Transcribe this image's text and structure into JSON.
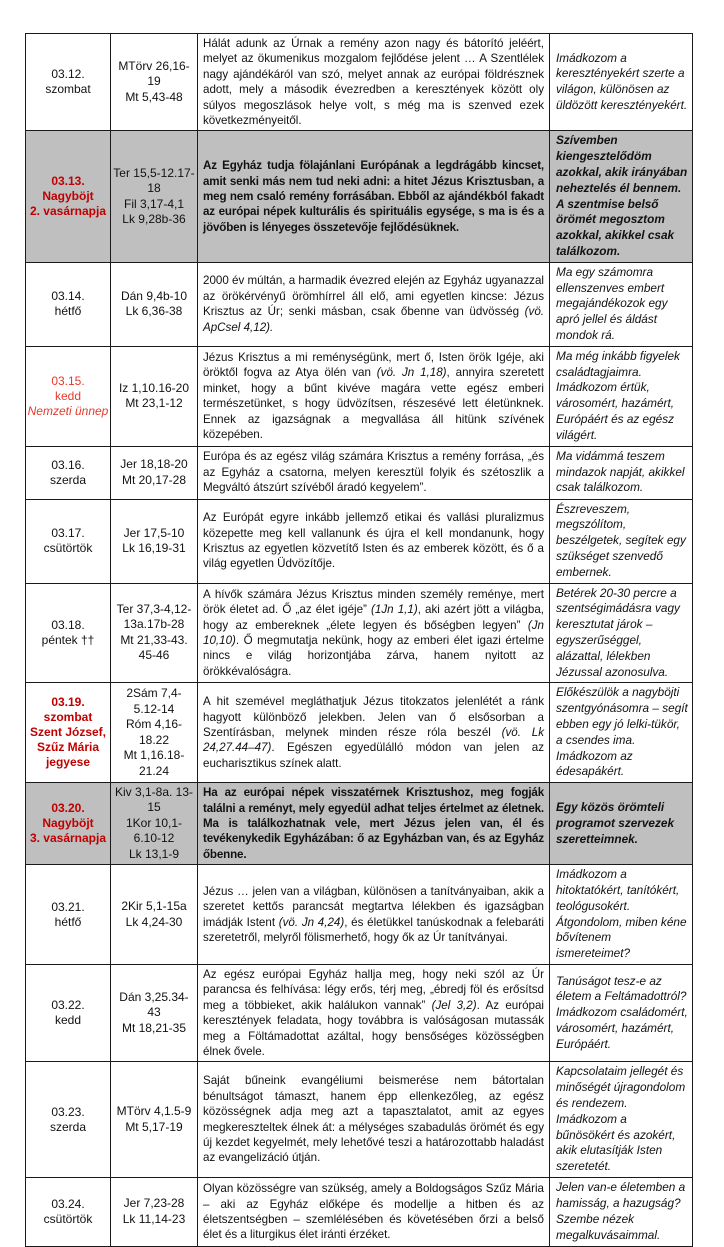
{
  "colors": {
    "date_red_bold": "#c00000",
    "date_red": "#e23b2e",
    "highlight_background": "#bfbfbf",
    "border": "#1a1a1a"
  },
  "table": {
    "rows": [
      {
        "highlighted": false,
        "date_lines": [
          {
            "t": "03.12.",
            "s": "plain"
          },
          {
            "t": "szombat",
            "s": "plain"
          }
        ],
        "ref_lines": [
          "MTörv 26,16-19",
          "Mt 5,43-48"
        ],
        "text_segments": [
          {
            "t": "Hálát adunk az Úrnak a remény azon nagy és bátorító jeléért, melyet az ökumenikus mozgalom fejlődése jelent … A Szentlélek nagy ajándékáról van szó, melyet annak az európai földrésznek adott, mely a második évezredben a keresztények között oly súlyos megoszlások helye volt, s még ma is szenved ezek következményeitől.",
            "i": false
          }
        ],
        "prayer": "Imádkozom a keresztényekért szerte a világon, különösen az üldözött keresztényekért."
      },
      {
        "highlighted": true,
        "date_lines": [
          {
            "t": "03.13.",
            "s": "red-bold"
          },
          {
            "t": "Nagyböjt",
            "s": "red-bold"
          },
          {
            "t": "2. vasárnapja",
            "s": "red-bold"
          }
        ],
        "ref_lines": [
          "Ter 15,5-12.17-18",
          "Fil 3,17-4,1",
          "Lk 9,28b-36"
        ],
        "text_segments": [
          {
            "t": "Az Egyház tudja fölajánlani Európának a legdrágább kincset, amit senki más nem tud neki adni: a hitet Jézus Krisztusban, a meg nem csaló remény forrásában. Ebből az ajándékból fakadt az európai népek kulturális és spirituális egysége, s ma is és a jövőben is lényeges összetevője fejlődésüknek.",
            "i": false
          }
        ],
        "prayer": "Szívemben kiengesztelődöm azokkal, akik irányában neheztelés él bennem. A szentmise belső örömét megosztom azokkal, akikkel csak találkozom."
      },
      {
        "highlighted": false,
        "date_lines": [
          {
            "t": "03.14.",
            "s": "plain"
          },
          {
            "t": "hétfő",
            "s": "plain"
          }
        ],
        "ref_lines": [
          "Dán 9,4b-10",
          "Lk 6,36-38"
        ],
        "text_segments": [
          {
            "t": "2000 év múltán, a harmadik évezred elején az Egyház ugyanazzal az örökérvényű örömhírrel áll elő, ami egyetlen kincse: Jézus Krisztus az Úr; senki másban, csak őbenne van üdvösség ",
            "i": false
          },
          {
            "t": "(vö. ApCsel 4,12).",
            "i": true
          }
        ],
        "prayer": "Ma egy számomra ellenszenves embert megajándékozok egy apró jellel és áldást mondok rá."
      },
      {
        "highlighted": false,
        "date_lines": [
          {
            "t": "03.15.",
            "s": "red"
          },
          {
            "t": "kedd",
            "s": "red"
          },
          {
            "t": "Nemzeti ünnep",
            "s": "red-italic"
          }
        ],
        "ref_lines": [
          "Iz 1,10.16-20",
          "Mt 23,1-12"
        ],
        "text_segments": [
          {
            "t": "Jézus Krisztus a mi reménységünk, mert ő, Isten örök Igéje, aki öröktől fogva az Atya ölén van ",
            "i": false
          },
          {
            "t": "(vö. Jn 1,18)",
            "i": true
          },
          {
            "t": ", annyira szeretett minket, hogy a bűnt kivéve magára vette egész emberi természetünket, s hogy üdvözítsen, részesévé lett életünknek. Ennek az igazságnak a megvallása áll hitünk szívének közepében.",
            "i": false
          }
        ],
        "prayer": "Ma még inkább figyelek családtagjaimra. Imádkozom értük, városomért, hazámért, Európáért és az egész világért."
      },
      {
        "highlighted": false,
        "date_lines": [
          {
            "t": "03.16.",
            "s": "plain"
          },
          {
            "t": "szerda",
            "s": "plain"
          }
        ],
        "ref_lines": [
          "Jer 18,18-20",
          "Mt 20,17-28"
        ],
        "text_segments": [
          {
            "t": "Európa és az egész világ számára Krisztus a remény forrása, „és az Egyház a csatorna, melyen keresztül folyik és szétoszlik a Megváltó átszúrt szívéből áradó kegyelem”.",
            "i": false
          }
        ],
        "prayer": "Ma vidámmá teszem mindazok napját, akikkel csak találkozom."
      },
      {
        "highlighted": false,
        "date_lines": [
          {
            "t": "03.17.",
            "s": "plain"
          },
          {
            "t": "csütörtök",
            "s": "plain"
          }
        ],
        "ref_lines": [
          "Jer 17,5-10",
          "Lk 16,19-31"
        ],
        "text_segments": [
          {
            "t": "Az Európát egyre inkább jellemző etikai és vallási pluralizmus közepette meg kell vallanunk és újra el kell mondanunk, hogy Krisztus az egyetlen közvetítő Isten és az emberek között, és ő a világ egyetlen Üdvözítője.",
            "i": false
          }
        ],
        "prayer": "Észreveszem, megszólítom, beszélgetek, segítek egy szükséget szenvedő embernek."
      },
      {
        "highlighted": false,
        "date_lines": [
          {
            "t": "03.18.",
            "s": "plain"
          },
          {
            "t": "péntek ††",
            "s": "plain"
          }
        ],
        "ref_lines": [
          "Ter 37,3-4,12-",
          "13a.17b-28",
          "Mt 21,33-43.",
          "45-46"
        ],
        "text_segments": [
          {
            "t": "A hívők számára Jézus Krisztus minden személy reménye, mert örök életet ad. Ő „az élet igéje” ",
            "i": false
          },
          {
            "t": "(1Jn 1,1)",
            "i": true
          },
          {
            "t": ", aki azért jött a világba, hogy az embereknek „élete legyen és bőségben legyen” ",
            "i": false
          },
          {
            "t": "(Jn 10,10)",
            "i": true
          },
          {
            "t": ". Ő megmutatja nekünk, hogy az emberi élet igazi értelme nincs e világ horizontjába zárva, hanem nyitott az örökkévalóságra.",
            "i": false
          }
        ],
        "prayer": "Betérek 20-30 percre a szentségimádásra vagy keresztutat járok – egyszerűséggel, alázattal, lélekben Jézussal azonosulva."
      },
      {
        "highlighted": false,
        "date_lines": [
          {
            "t": "03.19.",
            "s": "red-bold"
          },
          {
            "t": "szombat",
            "s": "red-bold"
          },
          {
            "t": "Szent József,",
            "s": "red-bold"
          },
          {
            "t": "Szűz Mária",
            "s": "red-bold"
          },
          {
            "t": "jegyese",
            "s": "red-bold"
          }
        ],
        "ref_lines": [
          "2Sám 7,4-5.12-14",
          "Róm 4,16-18.22",
          "Mt 1,16.18-21.24"
        ],
        "text_segments": [
          {
            "t": "A hit szemével megláthatjuk Jézus titokzatos jelenlétét a ránk hagyott különböző jelekben. Jelen van ő elsősorban a Szentírásban, melynek minden része róla beszél ",
            "i": false
          },
          {
            "t": "(vö. Lk 24,27.44–47)",
            "i": true
          },
          {
            "t": ". Egészen egyedülálló módon van jelen az eucharisztikus színek alatt.",
            "i": false
          }
        ],
        "prayer": "Előkészülök a nagyböjti szentgyónásomra – segít ebben egy jó lelki-tükör, a csendes ima. Imádkozom az édesapákért."
      },
      {
        "highlighted": true,
        "date_lines": [
          {
            "t": "03.20.",
            "s": "red-bold"
          },
          {
            "t": "Nagyböjt",
            "s": "red-bold"
          },
          {
            "t": "3. vasárnapja",
            "s": "red-bold"
          }
        ],
        "ref_lines": [
          "Kiv 3,1-8a. 13-15",
          "1Kor 10,1-6.10-12",
          "Lk 13,1-9"
        ],
        "text_segments": [
          {
            "t": "Ha az európai népek visszatérnek Krisztushoz, meg fogják találni a reményt, mely egyedül adhat teljes értelmet az életnek. Ma is találkozhatnak vele, mert Jézus jelen van, él és tevékenykedik Egyházában: ő az Egyházban van, és az Egyház őbenne.",
            "i": false
          }
        ],
        "prayer": "Egy közös örömteli programot szervezek szeretteimnek."
      },
      {
        "highlighted": false,
        "date_lines": [
          {
            "t": "03.21.",
            "s": "plain"
          },
          {
            "t": "hétfő",
            "s": "plain"
          }
        ],
        "ref_lines": [
          "2Kir 5,1-15a",
          "Lk 4,24-30"
        ],
        "text_segments": [
          {
            "t": "Jézus … jelen van a világban, különösen a tanítványaiban, akik a szeretet kettős parancsát megtartva lélekben és igazságban imádják Istent ",
            "i": false
          },
          {
            "t": "(vö. Jn 4,24)",
            "i": true
          },
          {
            "t": ", és életükkel tanúskodnak a felebaráti szeretetről, melyről fölismerhető, hogy ők az Úr tanítványai.",
            "i": false
          }
        ],
        "prayer": "Imádkozom a hitoktatókért, tanítókért, teológusokért. Átgondolom, miben kéne bővítenem ismereteimet?"
      },
      {
        "highlighted": false,
        "date_lines": [
          {
            "t": "03.22.",
            "s": "plain"
          },
          {
            "t": "kedd",
            "s": "plain"
          }
        ],
        "ref_lines": [
          "Dán 3,25.34-43",
          "Mt 18,21-35"
        ],
        "text_segments": [
          {
            "t": "Az egész európai Egyház hallja meg, hogy neki szól az Úr parancsa és felhívása: légy erős, térj meg, „ébredj föl és erősítsd meg a többieket, akik halálukon vannak” ",
            "i": false
          },
          {
            "t": "(Jel 3,2)",
            "i": true
          },
          {
            "t": ". Az európai keresztények feladata, hogy továbbra is valóságosan mutassák meg a Föltámadottat azáltal, hogy bensőséges közösségben élnek ővele.",
            "i": false
          }
        ],
        "prayer": "Tanúságot tesz-e az életem a Feltámadottról? Imádkozom családomért, városomért, hazámért, Európáért."
      },
      {
        "highlighted": false,
        "date_lines": [
          {
            "t": "03.23.",
            "s": "plain"
          },
          {
            "t": "szerda",
            "s": "plain"
          }
        ],
        "ref_lines": [
          "MTörv 4,1.5-9",
          "Mt 5,17-19"
        ],
        "text_segments": [
          {
            "t": "Saját bűneink evangéliumi beismerése nem bátortalan bénultságot támaszt, hanem épp ellenkezőleg, az egész közösségnek adja meg azt a tapasztalatot, amit az egyes megkereszteltek élnek át: a mélységes szabadulás örömét és egy új kezdet kegyelmét, mely lehetővé teszi a határozottabb haladást az evangelizáció útján.",
            "i": false
          }
        ],
        "prayer": "Kapcsolataim jellegét és minőségét újragondolom és rendezem. Imádkozom a bűnösökért és azokért, akik elutasítják Isten szeretetét."
      },
      {
        "highlighted": false,
        "date_lines": [
          {
            "t": "03.24.",
            "s": "plain"
          },
          {
            "t": "csütörtök",
            "s": "plain"
          }
        ],
        "ref_lines": [
          "Jer 7,23-28",
          "Lk 11,14-23"
        ],
        "text_segments": [
          {
            "t": "Olyan közösségre van szükség, amely a Boldogságos Szűz Mária – aki az Egyház előképe és modellje a hitben és az életszentségben – szemlélésében és követésében őrzi a belső élet és a liturgikus élet iránti érzéket.",
            "i": false
          }
        ],
        "prayer": "Jelen van-e életemben a hamisság, a hazugság? Szembe nézek megalkuvásaimmal."
      }
    ]
  }
}
